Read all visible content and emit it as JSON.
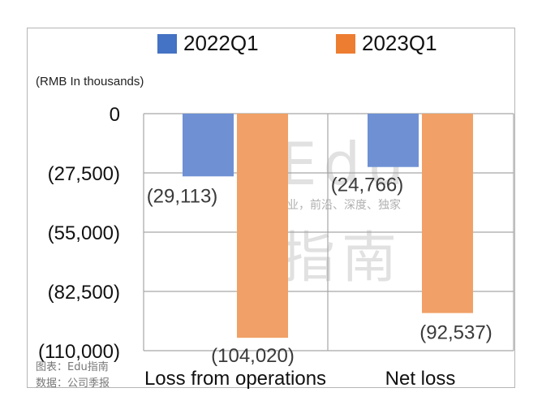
{
  "chart_data": {
    "type": "bar",
    "unit_label": "(RMB In thousands)",
    "categories": [
      "Loss from operations",
      "Net loss"
    ],
    "series": [
      {
        "name": "2022Q1",
        "color": "#4472c4",
        "values": [
          -29113,
          -24766
        ],
        "labels": [
          "(29,113)",
          "(24,766)"
        ]
      },
      {
        "name": "2023Q1",
        "color": "#ed7d31",
        "values": [
          -104020,
          -92537
        ],
        "labels": [
          "(104,020)",
          "(92,537)"
        ]
      }
    ],
    "yticks": [
      {
        "value": 0,
        "label": "0"
      },
      {
        "value": -27500,
        "label": "(27,500)"
      },
      {
        "value": -55000,
        "label": "(55,000)"
      },
      {
        "value": -82500,
        "label": "(82,500)"
      },
      {
        "value": -110000,
        "label": "(110,000)"
      }
    ],
    "ylim": [
      -110000,
      0
    ],
    "grid": true,
    "legend": "top"
  },
  "watermark": {
    "main": "Edu",
    "tagline": "教育行业，前沿、深度、独家",
    "sub": "指南"
  },
  "footer": {
    "source_chart": "图表：Edu指南",
    "source_data": "数据：公司季报"
  }
}
